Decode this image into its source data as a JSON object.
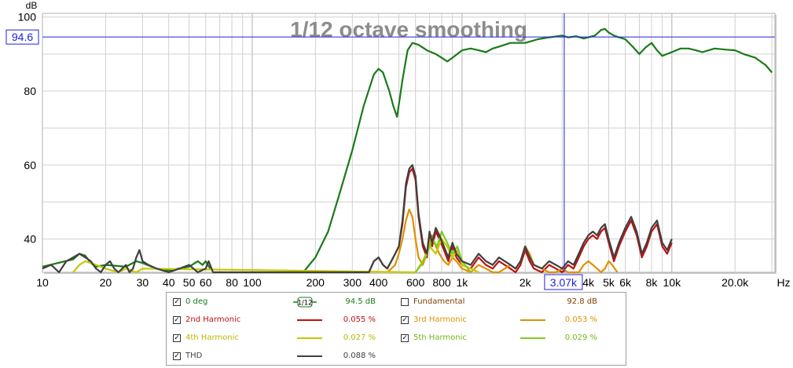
{
  "chart_data": {
    "type": "line",
    "title": "1/12 octave smoothing",
    "ylabel": "dB",
    "xlabel": "Hz",
    "xscale": "log",
    "xlim": [
      10,
      31000
    ],
    "ylim": [
      31,
      101
    ],
    "yticks": [
      40,
      60,
      80,
      100
    ],
    "ytick_labels": [
      "40",
      "60",
      "80",
      "100"
    ],
    "xtick_labels": [
      {
        "f": 10,
        "label": "10"
      },
      {
        "f": 20,
        "label": "20"
      },
      {
        "f": 30,
        "label": "30"
      },
      {
        "f": 40,
        "label": "40"
      },
      {
        "f": 50,
        "label": "50"
      },
      {
        "f": 60,
        "label": "60"
      },
      {
        "f": 80,
        "label": "80"
      },
      {
        "f": 100,
        "label": "100"
      },
      {
        "f": 200,
        "label": "200"
      },
      {
        "f": 300,
        "label": "300"
      },
      {
        "f": 400,
        "label": "400"
      },
      {
        "f": 600,
        "label": "600"
      },
      {
        "f": 800,
        "label": "800"
      },
      {
        "f": 1000,
        "label": "1k"
      },
      {
        "f": 2000,
        "label": "2k"
      },
      {
        "f": 4000,
        "label": "4k"
      },
      {
        "f": 5000,
        "label": "5k"
      },
      {
        "f": 6000,
        "label": "6k"
      },
      {
        "f": 8000,
        "label": "8k"
      },
      {
        "f": 10000,
        "label": "10k"
      },
      {
        "f": 20000,
        "label": "20.0k"
      }
    ],
    "grid": true,
    "cursor": {
      "freq_label": "3.07k",
      "freq": 3070,
      "level_label": "94.6",
      "level": 94.6
    },
    "series": [
      {
        "name": "0 deg",
        "color": "#1a7a1a",
        "x": [
          10,
          14,
          15,
          16,
          17,
          18,
          20,
          25,
          28,
          30,
          35,
          40,
          50,
          55,
          58,
          60,
          63
        ],
        "y": [
          32.5,
          34.5,
          36,
          35.5,
          33.5,
          32.5,
          33,
          32.5,
          34,
          33.5,
          32,
          31.5,
          32.5,
          34,
          33,
          34,
          32
        ]
      },
      {
        "name": "0 deg",
        "color": "#1a7a1a",
        "x": [
          175,
          200,
          230,
          260,
          300,
          340,
          380,
          400,
          420,
          450,
          470,
          490,
          520,
          550,
          580,
          620,
          680,
          750,
          800,
          850,
          900,
          1000,
          1100,
          1200,
          1300,
          1400,
          1500,
          1700,
          2000,
          2300,
          2600,
          3000,
          3200,
          3500,
          3800,
          4000,
          4300,
          4600,
          4800,
          5000,
          5300,
          5600,
          6000,
          6500,
          7000,
          7500,
          8000,
          8500,
          9000,
          10000,
          11000,
          12000,
          13000,
          14000,
          15000,
          16000,
          18000,
          20000,
          22000,
          25000,
          28000,
          30000
        ],
        "y": [
          31,
          35,
          42,
          52,
          64,
          76,
          84.5,
          86,
          85,
          80,
          76,
          73,
          83,
          91,
          93,
          92.5,
          91,
          90,
          89,
          88,
          89,
          91,
          91.5,
          91,
          90.5,
          91.5,
          92,
          93,
          93,
          94,
          94.5,
          95,
          94.5,
          94.8,
          94.2,
          94.5,
          95,
          96.5,
          96.8,
          95.8,
          95,
          94.5,
          94,
          92,
          90,
          91.8,
          93,
          91,
          89.5,
          90.5,
          91.5,
          91.5,
          91,
          90.5,
          91,
          91.5,
          91.2,
          91,
          90,
          89,
          87,
          85
        ]
      },
      {
        "name": "2nd Harmonic",
        "color": "#c01010",
        "x": [
          360,
          380,
          400,
          420,
          440,
          460,
          480,
          500,
          520,
          540,
          560,
          580,
          600,
          620,
          650,
          680,
          700,
          720,
          750,
          780,
          820,
          860,
          900,
          940,
          1000,
          1100,
          1200,
          1300,
          1400,
          1500,
          1700,
          1800,
          1900,
          2000,
          2100,
          2200,
          2400,
          2600,
          2800,
          3000,
          3200,
          3400,
          3600,
          3800,
          4000,
          4200,
          4400,
          4600,
          4800,
          5000,
          5300,
          5600,
          6000,
          6400,
          6800,
          7200,
          7600,
          8000,
          8500,
          9000,
          9500,
          10000
        ],
        "y": [
          31,
          34,
          35,
          33,
          32,
          34,
          36,
          38,
          44,
          54,
          58,
          59,
          56,
          46,
          38,
          35,
          41,
          38,
          42,
          40,
          37,
          34,
          38,
          35,
          33,
          32,
          35,
          33,
          32,
          34,
          32,
          31,
          33,
          37,
          34,
          32,
          31,
          33,
          32,
          31,
          33,
          32,
          35,
          38,
          40,
          41,
          40,
          42,
          43,
          39,
          34,
          38,
          42,
          45,
          41,
          35,
          38,
          42,
          44,
          38,
          36,
          39
        ]
      },
      {
        "name": "3rd Harmonic",
        "color": "#e09000",
        "x": [
          440,
          460,
          480,
          500,
          520,
          540,
          560,
          580,
          600,
          620,
          650,
          680,
          700,
          720,
          750,
          780,
          820,
          860,
          900,
          940,
          1000,
          1100,
          1200,
          1300,
          1400,
          1500,
          1600,
          1700,
          1800,
          1900,
          2000,
          2100,
          2200,
          2400,
          2600,
          2800,
          3000,
          3200,
          3600,
          3800,
          4000,
          4200,
          4400,
          4600,
          4800,
          5000,
          5200,
          5500
        ],
        "y": [
          31,
          32,
          33,
          36,
          40,
          45,
          48,
          46,
          40,
          35,
          33,
          36,
          39,
          41,
          38,
          36,
          34,
          33,
          35,
          34,
          32,
          31,
          33,
          32,
          31,
          31,
          32,
          33,
          32,
          34,
          38,
          36,
          33,
          32,
          31,
          31,
          32,
          31,
          31,
          33,
          34,
          33,
          32,
          31,
          32,
          34,
          33,
          31
        ]
      },
      {
        "name": "4th Harmonic",
        "color": "#c8c800",
        "x": [
          14,
          15,
          16,
          18,
          20,
          23,
          25,
          28,
          30,
          600,
          650,
          700,
          750,
          800,
          850,
          900,
          950,
          1000,
          1100,
          1200
        ],
        "y": [
          31,
          33,
          34,
          33,
          32,
          31,
          32,
          31,
          32,
          31,
          34,
          38,
          36,
          40,
          38,
          35,
          37,
          33,
          32,
          31
        ]
      },
      {
        "name": "5th Harmonic",
        "color": "#80cc20",
        "x": [
          600,
          640,
          680,
          720,
          760,
          800,
          850,
          900,
          950,
          1000,
          1100
        ],
        "y": [
          31,
          33,
          36,
          40,
          38,
          42,
          39,
          36,
          38,
          34,
          31
        ]
      },
      {
        "name": "THD",
        "color": "#404040",
        "x": [
          10,
          11,
          12,
          13,
          14,
          15,
          16,
          17,
          18,
          19,
          20,
          21,
          22,
          23,
          24,
          25,
          26,
          27,
          28,
          29,
          30,
          32,
          35,
          40,
          45,
          50,
          55,
          60,
          62,
          65,
          360,
          380,
          400,
          420,
          440,
          460,
          480,
          500,
          520,
          540,
          560,
          580,
          600,
          620,
          650,
          680,
          700,
          720,
          750,
          780,
          820,
          860,
          900,
          940,
          1000,
          1100,
          1200,
          1300,
          1400,
          1500,
          1700,
          1800,
          1900,
          2000,
          2100,
          2200,
          2400,
          2600,
          2800,
          3000,
          3200,
          3400,
          3600,
          3800,
          4000,
          4200,
          4400,
          4600,
          4800,
          5000,
          5300,
          5600,
          6000,
          6400,
          6800,
          7200,
          7600,
          8000,
          8500,
          9000,
          9500,
          10000
        ],
        "y": [
          32,
          33,
          31,
          34,
          35,
          36,
          35,
          34,
          32,
          31,
          33,
          34,
          32,
          31,
          32,
          33,
          31,
          32,
          35,
          37,
          34,
          33,
          32,
          31,
          32,
          33,
          31,
          32,
          34,
          31,
          31,
          34,
          35,
          33,
          32,
          34,
          36,
          38,
          45,
          55,
          59,
          60,
          57,
          47,
          39,
          36,
          42,
          39,
          43,
          41,
          38,
          35,
          39,
          36,
          34,
          33,
          36,
          34,
          33,
          35,
          33,
          32,
          34,
          38,
          35,
          33,
          32,
          34,
          33,
          32,
          34,
          33,
          36,
          39,
          41,
          42,
          41,
          43,
          44,
          40,
          35,
          39,
          43,
          46,
          42,
          36,
          39,
          43,
          45,
          39,
          37,
          40
        ]
      }
    ]
  },
  "legend": {
    "rows": [
      {
        "label": "0 deg",
        "color": "#1a7a1a",
        "checked": true,
        "value": "94.5 dB",
        "smoothing_label": "1/12"
      },
      {
        "label": "Fundamental",
        "color": "#804000",
        "checked": false,
        "value": "92.8 dB"
      },
      {
        "label": "2nd Harmonic",
        "color": "#c01010",
        "checked": true,
        "value": "0.055 %"
      },
      {
        "label": "3rd Harmonic",
        "color": "#e09000",
        "checked": true,
        "value": "0.053 %"
      },
      {
        "label": "4th Harmonic",
        "color": "#c8c800",
        "checked": true,
        "value": "0.027 %"
      },
      {
        "label": "5th Harmonic",
        "color": "#80cc20",
        "checked": true,
        "value": "0.029 %"
      },
      {
        "label": "THD",
        "color": "#404040",
        "checked": true,
        "value": "0.088 %"
      }
    ]
  }
}
